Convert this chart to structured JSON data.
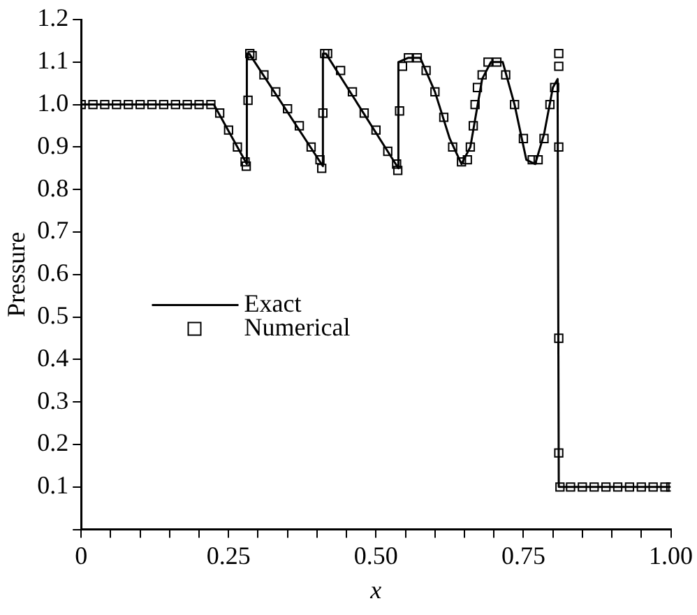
{
  "chart_data": {
    "type": "line",
    "xlabel": "x",
    "ylabel": "Pressure",
    "xlim": [
      0,
      1
    ],
    "ylim": [
      0,
      1.2
    ],
    "xticks": [
      0,
      {
        "value": 0.05,
        "label": null
      },
      {
        "value": 0.1,
        "label": null
      },
      {
        "value": 0.15,
        "label": null
      },
      {
        "value": 0.2,
        "label": null
      },
      0.25,
      {
        "value": 0.3,
        "label": null
      },
      {
        "value": 0.35,
        "label": null
      },
      {
        "value": 0.4,
        "label": null
      },
      {
        "value": 0.45,
        "label": null
      },
      {
        "value": 0.5,
        "label": "0.50"
      },
      {
        "value": 0.55,
        "label": null
      },
      {
        "value": 0.6,
        "label": null
      },
      {
        "value": 0.65,
        "label": null
      },
      {
        "value": 0.7,
        "label": null
      },
      0.75,
      {
        "value": 0.8,
        "label": null
      },
      {
        "value": 0.85,
        "label": null
      },
      {
        "value": 0.9,
        "label": null
      },
      {
        "value": 0.95,
        "label": null
      },
      {
        "value": 1,
        "label": "1.00"
      }
    ],
    "yticks": [
      {
        "value": 0,
        "label": null
      },
      0.1,
      0.2,
      0.3,
      0.4,
      0.5,
      0.6,
      0.7,
      0.8,
      0.9,
      {
        "value": 1,
        "label": "1.0"
      },
      1.1,
      1.2
    ],
    "legend": "left",
    "series": [
      {
        "name": "Exact",
        "type": "line",
        "color": "#000000",
        "marker": "none",
        "line_style": "solid",
        "x": [
          0,
          0.225,
          0.281,
          0.281,
          0.285,
          0.41,
          0.41,
          0.415,
          0.538,
          0.538,
          0.555,
          0.575,
          0.6,
          0.625,
          0.645,
          0.66,
          0.68,
          0.695,
          0.715,
          0.735,
          0.755,
          0.77,
          0.785,
          0.8,
          0.808,
          0.81,
          1
        ],
        "values": [
          1,
          1,
          0.86,
          1.12,
          1.12,
          0.855,
          1.12,
          1.12,
          0.85,
          1.1,
          1.11,
          1.11,
          1.03,
          0.92,
          0.86,
          0.9,
          1.06,
          1.1,
          1.1,
          1.0,
          0.87,
          0.86,
          0.93,
          1.04,
          1.06,
          0.1,
          0.1
        ]
      },
      {
        "name": "Numerical",
        "type": "scatter",
        "color": "#000000",
        "marker": "square",
        "x": [
          0,
          0.02,
          0.04,
          0.06,
          0.08,
          0.1,
          0.12,
          0.14,
          0.16,
          0.18,
          0.2,
          0.22,
          0.235,
          0.25,
          0.265,
          0.278,
          0.28,
          0.283,
          0.286,
          0.29,
          0.31,
          0.33,
          0.35,
          0.37,
          0.39,
          0.405,
          0.408,
          0.41,
          0.413,
          0.418,
          0.44,
          0.46,
          0.48,
          0.5,
          0.52,
          0.535,
          0.537,
          0.54,
          0.545,
          0.555,
          0.57,
          0.585,
          0.6,
          0.615,
          0.63,
          0.645,
          0.655,
          0.66,
          0.665,
          0.668,
          0.672,
          0.68,
          0.69,
          0.705,
          0.72,
          0.735,
          0.75,
          0.765,
          0.775,
          0.785,
          0.795,
          0.803,
          0.81,
          0.81,
          0.81,
          0.81,
          0.81,
          0.812,
          0.83,
          0.85,
          0.87,
          0.89,
          0.91,
          0.93,
          0.95,
          0.97,
          0.99,
          1
        ],
        "values": [
          1,
          1,
          1,
          1,
          1,
          1,
          1,
          1,
          1,
          1,
          1,
          1,
          0.98,
          0.94,
          0.9,
          0.865,
          0.855,
          1.01,
          1.12,
          1.115,
          1.07,
          1.03,
          0.99,
          0.95,
          0.9,
          0.87,
          0.85,
          0.98,
          1.12,
          1.12,
          1.08,
          1.03,
          0.98,
          0.94,
          0.89,
          0.86,
          0.845,
          0.985,
          1.09,
          1.11,
          1.11,
          1.08,
          1.03,
          0.97,
          0.9,
          0.865,
          0.87,
          0.9,
          0.95,
          1.0,
          1.04,
          1.07,
          1.1,
          1.1,
          1.07,
          1.0,
          0.92,
          0.87,
          0.87,
          0.92,
          1.0,
          1.04,
          1.12,
          1.09,
          0.9,
          0.45,
          0.18,
          0.1,
          0.1,
          0.1,
          0.1,
          0.1,
          0.1,
          0.1,
          0.1,
          0.1,
          0.1,
          0.1
        ]
      }
    ]
  }
}
